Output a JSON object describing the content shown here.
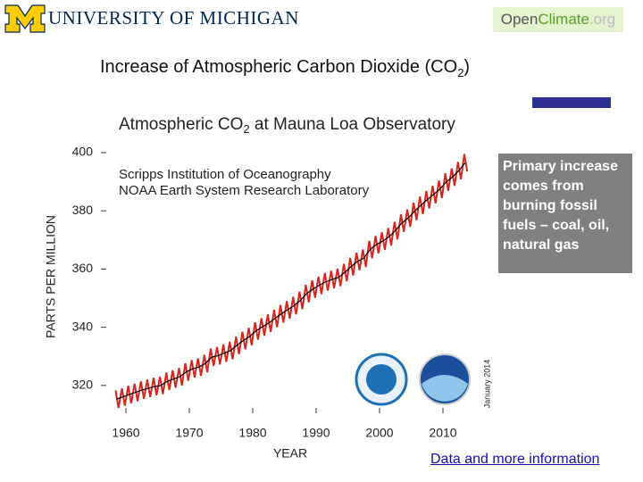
{
  "header": {
    "university": "UNIVERSITY OF MICHIGAN",
    "logo": [
      "Open",
      "Climate",
      ".org"
    ]
  },
  "slide_title": [
    "Increase of Atmospheric Carbon Dioxide (CO",
    "2",
    ")"
  ],
  "callout": "Primary increase comes from burning fossil fuels – coal, oil, natural gas",
  "link": "Data and more information",
  "chart_data": {
    "type": "line",
    "title": [
      "Atmospheric CO",
      "2",
      " at Mauna Loa Observatory"
    ],
    "annotations": [
      "Scripps Institution of Oceanography",
      "NOAA Earth System Research Laboratory",
      "January 2014"
    ],
    "xlabel": "YEAR",
    "ylabel": "PARTS PER MILLION",
    "xlim": [
      1955,
      2017
    ],
    "ylim": [
      310,
      405
    ],
    "xticks": [
      1960,
      1970,
      1980,
      1990,
      2000,
      2010
    ],
    "yticks": [
      320,
      340,
      360,
      380,
      400
    ],
    "series": [
      {
        "color": "#d7261e",
        "x": [
          1958.37,
          1958.83,
          1959.37,
          1959.83,
          1960.37,
          1960.83,
          1961.37,
          1961.83,
          1962.37,
          1962.83,
          1963.37,
          1963.83,
          1964.37,
          1964.83,
          1965.37,
          1965.83,
          1966.37,
          1966.83,
          1967.37,
          1967.83,
          1968.37,
          1968.83,
          1969.37,
          1969.83,
          1970.37,
          1970.83,
          1971.37,
          1971.83,
          1972.37,
          1972.83,
          1973.37,
          1973.83,
          1974.37,
          1974.83,
          1975.37,
          1975.83,
          1976.37,
          1976.83,
          1977.37,
          1977.83,
          1978.37,
          1978.83,
          1979.37,
          1979.83,
          1980.37,
          1980.83,
          1981.37,
          1981.83,
          1982.37,
          1982.83,
          1983.37,
          1983.83,
          1984.37,
          1984.83,
          1985.37,
          1985.83,
          1986.37,
          1986.83,
          1987.37,
          1987.83,
          1988.37,
          1988.83,
          1989.37,
          1989.83,
          1990.37,
          1990.83,
          1991.37,
          1991.83,
          1992.37,
          1992.83,
          1993.37,
          1993.83,
          1994.37,
          1994.83,
          1995.37,
          1995.83,
          1996.37,
          1996.83,
          1997.37,
          1997.83,
          1998.37,
          1998.83,
          1999.37,
          1999.83,
          2000.37,
          2000.83,
          2001.37,
          2001.83,
          2002.37,
          2002.83,
          2003.37,
          2003.83,
          2004.37,
          2004.83,
          2005.37,
          2005.83,
          2006.37,
          2006.83,
          2007.37,
          2007.83,
          2008.37,
          2008.83,
          2009.37,
          2009.83,
          2010.37,
          2010.83,
          2011.37,
          2011.83,
          2012.37,
          2012.83,
          2013.37,
          2013.83
        ],
        "values": [
          318.3,
          312.3,
          319.0,
          313.0,
          319.9,
          313.9,
          320.6,
          314.6,
          321.4,
          315.4,
          322.0,
          316.0,
          322.6,
          316.6,
          323.0,
          317.0,
          324.4,
          318.4,
          325.2,
          319.2,
          326.0,
          320.0,
          327.6,
          321.6,
          328.7,
          322.7,
          329.3,
          323.3,
          330.5,
          324.5,
          332.7,
          326.7,
          333.2,
          327.2,
          334.1,
          328.1,
          335.0,
          329.0,
          336.8,
          330.8,
          338.4,
          332.4,
          339.8,
          333.8,
          341.7,
          335.7,
          343.1,
          337.1,
          344.4,
          338.4,
          346.0,
          340.0,
          347.6,
          341.6,
          349.0,
          343.0,
          350.4,
          344.4,
          352.2,
          346.2,
          354.6,
          348.6,
          356.1,
          350.1,
          357.4,
          351.4,
          358.6,
          352.6,
          359.4,
          353.4,
          360.1,
          354.1,
          361.8,
          355.8,
          363.8,
          357.8,
          365.6,
          359.6,
          366.7,
          360.7,
          369.7,
          363.7,
          371.4,
          365.4,
          372.6,
          366.6,
          374.1,
          368.1,
          376.2,
          370.2,
          378.8,
          372.8,
          380.5,
          374.5,
          382.8,
          376.8,
          384.9,
          378.9,
          386.8,
          380.8,
          388.6,
          382.6,
          390.4,
          384.4,
          392.9,
          386.9,
          394.6,
          388.6,
          396.8,
          390.8,
          399.5,
          393.5
        ]
      },
      {
        "color": "#000000",
        "x": [
          1958.5,
          1959.5,
          1960.5,
          1961.5,
          1962.5,
          1963.5,
          1964.5,
          1965.5,
          1966.5,
          1967.5,
          1968.5,
          1969.5,
          1970.5,
          1971.5,
          1972.5,
          1973.5,
          1974.5,
          1975.5,
          1976.5,
          1977.5,
          1978.5,
          1979.5,
          1980.5,
          1981.5,
          1982.5,
          1983.5,
          1984.5,
          1985.5,
          1986.5,
          1987.5,
          1988.5,
          1989.5,
          1990.5,
          1991.5,
          1992.5,
          1993.5,
          1994.5,
          1995.5,
          1996.5,
          1997.5,
          1998.5,
          1999.5,
          2000.5,
          2001.5,
          2002.5,
          2003.5,
          2004.5,
          2005.5,
          2006.5,
          2007.5,
          2008.5,
          2009.5,
          2010.5,
          2011.5,
          2012.5,
          2013.5
        ],
        "values": [
          315.3,
          316.0,
          316.9,
          317.6,
          318.4,
          319.0,
          319.6,
          320.0,
          321.4,
          322.2,
          323.0,
          324.6,
          325.7,
          326.3,
          327.5,
          329.7,
          330.2,
          331.1,
          332.0,
          333.8,
          335.4,
          336.8,
          338.7,
          340.1,
          341.4,
          343.0,
          344.6,
          346.0,
          347.4,
          349.2,
          351.6,
          353.1,
          354.4,
          355.6,
          356.4,
          357.1,
          358.8,
          360.8,
          362.6,
          363.7,
          366.7,
          368.4,
          369.6,
          371.1,
          373.2,
          375.8,
          377.5,
          379.8,
          381.9,
          383.8,
          385.6,
          387.4,
          389.9,
          391.6,
          393.8,
          396.5
        ]
      }
    ]
  }
}
